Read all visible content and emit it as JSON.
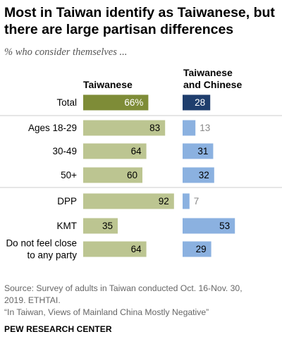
{
  "title": "Most in Taiwan identify as Taiwanese, but there are large partisan differences",
  "subtitle": "% who consider themselves ...",
  "colors": {
    "taiwanese_total": "#7e8c37",
    "taiwanese": "#bcc591",
    "both_total": "#1f3e6d",
    "both": "#8bb1e0",
    "divider": "#cccccc"
  },
  "chart_data": {
    "type": "bar",
    "orientation": "horizontal",
    "categories": [
      "Total",
      "Ages 18-29",
      "30-49",
      "50+",
      "DPP",
      "KMT",
      "Do not feel close to any party"
    ],
    "category_lines": [
      [
        "Total"
      ],
      [
        "Ages 18-29"
      ],
      [
        "30-49"
      ],
      [
        "50+"
      ],
      [
        "DPP"
      ],
      [
        "KMT"
      ],
      [
        "Do not feel close",
        "to any party"
      ]
    ],
    "series": [
      {
        "name": "Taiwanese",
        "values": [
          66,
          83,
          64,
          60,
          92,
          35,
          64
        ]
      },
      {
        "name": "Taiwanese and Chinese",
        "values": [
          28,
          13,
          31,
          32,
          7,
          53,
          29
        ]
      }
    ],
    "value_labels": [
      [
        "66%",
        "83",
        "64",
        "60",
        "92",
        "35",
        "64"
      ],
      [
        "28",
        "13",
        "31",
        "32",
        "7",
        "53",
        "29"
      ]
    ],
    "series_header_lines": [
      [
        "Taiwanese"
      ],
      [
        "Taiwanese",
        "and Chinese"
      ]
    ],
    "group_breaks_after": [
      0,
      3,
      4
    ]
  },
  "source_lines": [
    "Source: Survey of adults in Taiwan conducted Oct. 16-Nov. 30,",
    "2019. ETHTAI.",
    "“In Taiwan, Views of Mainland China Mostly Negative”"
  ],
  "brand": "PEW RESEARCH CENTER"
}
